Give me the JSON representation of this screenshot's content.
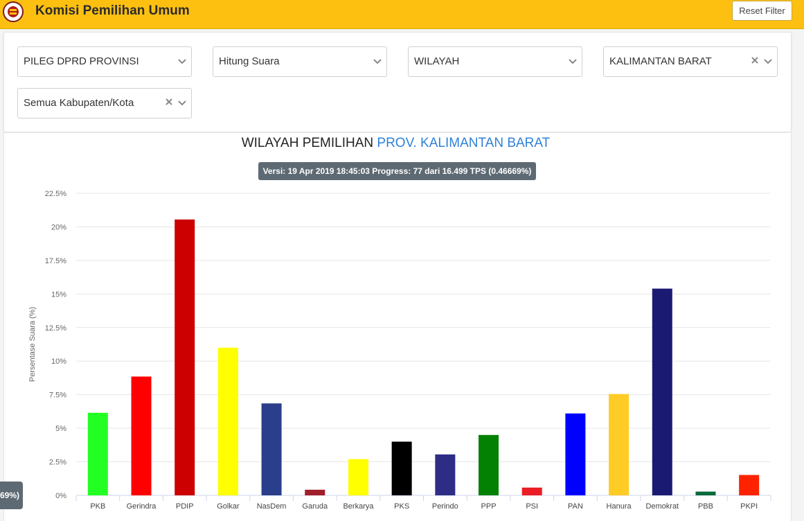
{
  "header": {
    "title": "Komisi Pemilihan Umum",
    "reset_label": "Reset Filter"
  },
  "filters": {
    "election_type": "PILEG DPRD PROVINSI",
    "mode": "Hitung Suara",
    "view": "WILAYAH",
    "province": "KALIMANTAN BARAT",
    "regency": "Semua Kabupaten/Kota"
  },
  "chart_header": {
    "title_prefix": "WILAYAH PEMILIHAN",
    "title_highlight": "PROV. KALIMANTAN BARAT",
    "version": "Versi: 19 Apr 2019 18:45:03 Progress: 77 dari 16.499 TPS (0.46669%)"
  },
  "left_badge": "69%)",
  "colors": {
    "header_bg": "#fdc010",
    "accent_blue": "#2f80d8",
    "badge_bg": "#5e6a73"
  },
  "chart_data": {
    "type": "bar",
    "ylabel": "Persentase Suara (%)",
    "ylim": [
      0,
      22.5
    ],
    "yticks": [
      {
        "value": 0,
        "label": "0%"
      },
      {
        "value": 2.5,
        "label": "2.5%"
      },
      {
        "value": 5,
        "label": "5%"
      },
      {
        "value": 7.5,
        "label": "7.5%"
      },
      {
        "value": 10,
        "label": "10%"
      },
      {
        "value": 12.5,
        "label": "12.5%"
      },
      {
        "value": 15,
        "label": "15%"
      },
      {
        "value": 17.5,
        "label": "17.5%"
      },
      {
        "value": 20,
        "label": "20%"
      },
      {
        "value": 22.5,
        "label": "22.5%"
      }
    ],
    "grid": true,
    "categories": [
      "PKB",
      "Gerindra",
      "PDIP",
      "Golkar",
      "NasDem",
      "Garuda",
      "Berkarya",
      "PKS",
      "Perindo",
      "PPP",
      "PSI",
      "PAN",
      "Hanura",
      "Demokrat",
      "PBB",
      "PKPI"
    ],
    "values": [
      6.15,
      8.85,
      20.55,
      11.0,
      6.85,
      0.42,
      2.7,
      4.0,
      3.05,
      4.5,
      0.58,
      6.1,
      7.55,
      15.4,
      0.28,
      1.52
    ],
    "colors": [
      "#22ff22",
      "#ff0000",
      "#cc0000",
      "#ffff00",
      "#2b3e8c",
      "#a01d2a",
      "#ffff00",
      "#000000",
      "#2e2d86",
      "#028102",
      "#ea1c24",
      "#0000ff",
      "#ffcc26",
      "#1b1a72",
      "#0a6a3a",
      "#ff2200"
    ]
  }
}
